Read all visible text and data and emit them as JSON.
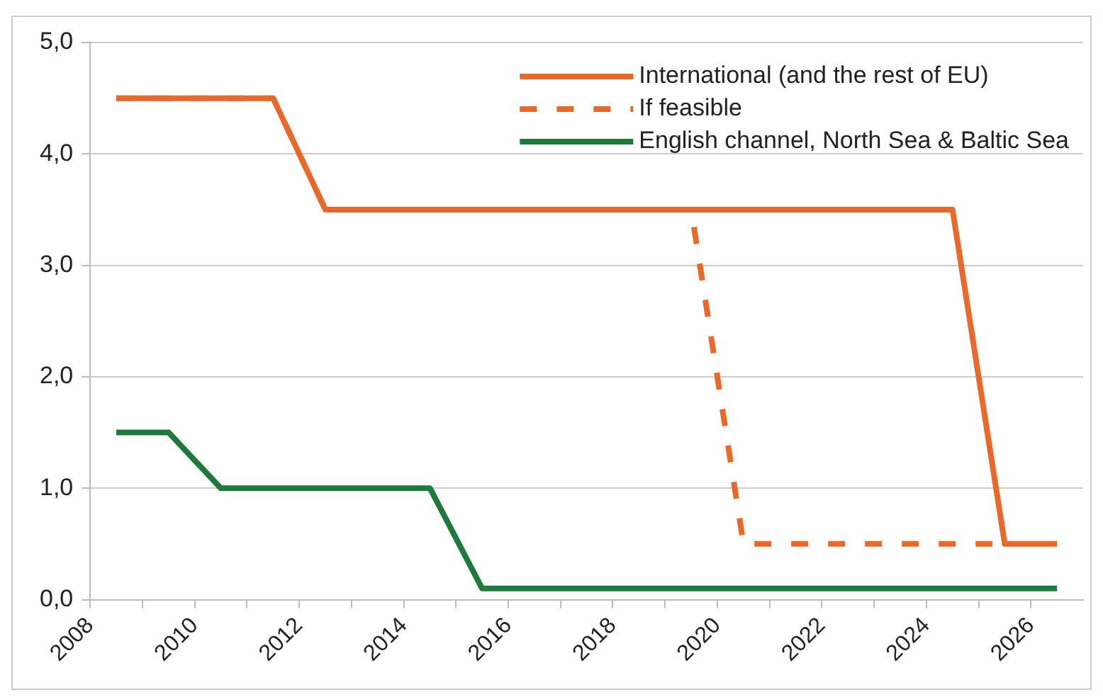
{
  "chart_data": {
    "type": "line",
    "legend": "top right",
    "grid": "y",
    "marker": "none",
    "xlim": [
      2008,
      2027
    ],
    "xticks": [
      2008,
      {
        "value": 2009,
        "label": null
      },
      2010,
      {
        "value": 2011,
        "label": null
      },
      2012,
      {
        "value": 2013,
        "label": null
      },
      2014,
      {
        "value": 2015,
        "label": null
      },
      2016,
      {
        "value": 2017,
        "label": null
      },
      2018,
      {
        "value": 2019,
        "label": null
      },
      2020,
      {
        "value": 2021,
        "label": null
      },
      2022,
      {
        "value": 2023,
        "label": null
      },
      2024,
      {
        "value": 2025,
        "label": null
      },
      2026
    ],
    "ylim": [
      0,
      5
    ],
    "yticks": [
      {
        "value": 0,
        "label": "0,0"
      },
      {
        "value": 1,
        "label": "1,0"
      },
      {
        "value": 2,
        "label": "2,0"
      },
      {
        "value": 3,
        "label": "3,0"
      },
      {
        "value": 4,
        "label": "4,0"
      },
      {
        "value": 5,
        "label": "5,0"
      }
    ],
    "series": [
      {
        "name": "International (and the rest of EU)",
        "color": "#e8692a",
        "line_style": "solid",
        "x": [
          2008.5,
          2011.5,
          2012.5,
          2024.5,
          2025.5,
          2026.5
        ],
        "values": [
          4.5,
          4.5,
          3.5,
          3.5,
          0.5,
          0.5
        ]
      },
      {
        "name": "If feasible",
        "color": "#e8692a",
        "line_style": "dashed",
        "x": [
          2008.5,
          2011.5,
          2012.5,
          2019.5,
          2020.5,
          2025.5
        ],
        "values": [
          4.5,
          4.5,
          3.5,
          3.5,
          0.5,
          0.5
        ]
      },
      {
        "name": "English channel, North Sea & Baltic Sea",
        "color": "#1e7a3a",
        "line_style": "solid",
        "x": [
          2008.5,
          2009.5,
          2010.5,
          2014.5,
          2015.5,
          2026.5
        ],
        "values": [
          1.5,
          1.5,
          1.0,
          1.0,
          0.1,
          0.1
        ]
      }
    ]
  }
}
